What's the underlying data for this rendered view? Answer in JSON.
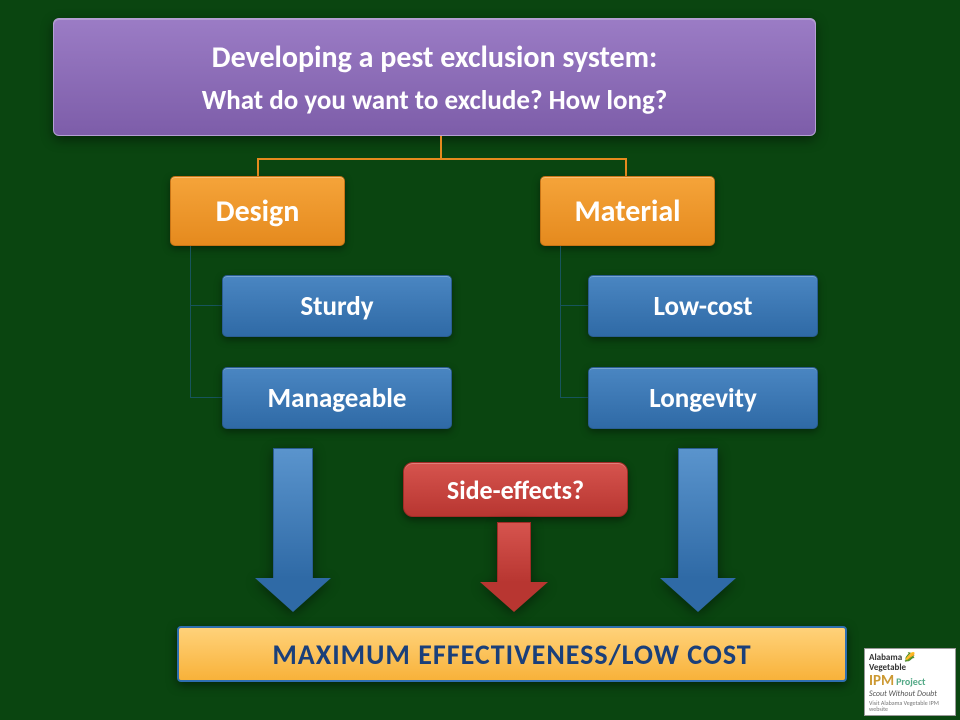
{
  "background_color": "#0a4510",
  "header": {
    "line1": "Developing a pest exclusion system:",
    "line2": "What do you want to exclude? How long?",
    "bg_gradient": [
      "#9b7cc5",
      "#7d5da9"
    ],
    "text_color": "#ffffff",
    "fontsize_line1": 30,
    "fontsize_line2": 27
  },
  "categories": {
    "design": {
      "label": "Design",
      "bg_gradient": [
        "#f5a43a",
        "#e58a1e"
      ],
      "children": [
        {
          "label": "Sturdy"
        },
        {
          "label": "Manageable"
        }
      ]
    },
    "material": {
      "label": "Material",
      "bg_gradient": [
        "#f5a43a",
        "#e58a1e"
      ],
      "children": [
        {
          "label": "Low-cost"
        },
        {
          "label": "Longevity"
        }
      ]
    },
    "child_bg_gradient": [
      "#4a86c2",
      "#2f6aa6"
    ],
    "child_fontsize": 27
  },
  "side_effects": {
    "label": "Side-effects?",
    "bg_gradient": [
      "#d6544e",
      "#b83631"
    ],
    "fontsize": 26
  },
  "arrows": {
    "blue_gradient": [
      "#5a94cd",
      "#2f6aa6"
    ],
    "red_gradient": [
      "#d6544e",
      "#b83631"
    ]
  },
  "connectors": {
    "header_to_cat_color": "#e58a1e",
    "cat_to_child_color": "#17555c"
  },
  "result": {
    "label": "MAXIMUM EFFECTIVENESS/LOW COST",
    "bg_gradient": [
      "#ffd27a",
      "#f8b23a"
    ],
    "border_color": "#2e6fb0",
    "text_color": "#1a3f7a",
    "fontsize": 28
  },
  "logo": {
    "line1a": "Alabama",
    "line1b": "Vegetable",
    "ipm": "IPM",
    "project": "Project",
    "tagline": "Scout Without Doubt",
    "fine": "Visit Alabama Vegetable IPM website"
  }
}
